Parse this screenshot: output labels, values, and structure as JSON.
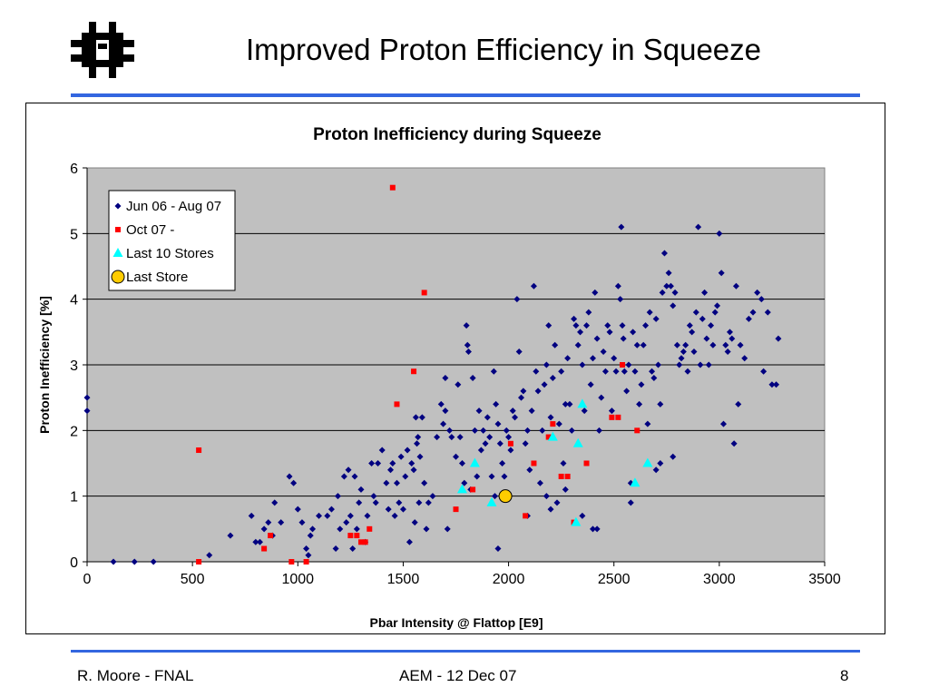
{
  "slide": {
    "title": "Improved Proton Efficiency in Squeeze",
    "logo_icon": "fermilab-logo-icon",
    "accent_color": "#3366e0"
  },
  "footer": {
    "left": "R. Moore - FNAL",
    "center": "AEM - 12 Dec 07",
    "right": "8"
  },
  "chart_data": {
    "type": "scatter",
    "title": "Proton Inefficiency during Squeeze",
    "xlabel": "Pbar Intensity @ Flattop  [E9]",
    "ylabel": "Proton Inefficiency  [%]",
    "xlim": [
      0,
      3500
    ],
    "ylim": [
      0,
      6
    ],
    "xticks": [
      0,
      500,
      1000,
      1500,
      2000,
      2500,
      3000,
      3500
    ],
    "yticks": [
      0,
      1,
      2,
      3,
      4,
      5,
      6
    ],
    "grid": "horizontal",
    "plot_background": "#c0c0c0",
    "legend_placement": "top-left",
    "series": [
      {
        "name": "Jun 06 - Aug 07",
        "marker": "diamond",
        "color": "#000080",
        "points": [
          [
            0,
            2.5
          ],
          [
            0,
            2.3
          ],
          [
            125,
            0.0
          ],
          [
            225,
            0.0
          ],
          [
            315,
            0.0
          ],
          [
            580,
            0.1
          ],
          [
            680,
            0.4
          ],
          [
            780,
            0.7
          ],
          [
            800,
            0.3
          ],
          [
            820,
            0.3
          ],
          [
            840,
            0.5
          ],
          [
            860,
            0.6
          ],
          [
            880,
            0.4
          ],
          [
            890,
            0.9
          ],
          [
            920,
            0.6
          ],
          [
            960,
            1.3
          ],
          [
            980,
            1.2
          ],
          [
            1000,
            0.8
          ],
          [
            1020,
            0.6
          ],
          [
            1040,
            0.2
          ],
          [
            1050,
            0.1
          ],
          [
            1060,
            0.4
          ],
          [
            1070,
            0.5
          ],
          [
            1100,
            0.7
          ],
          [
            1140,
            0.7
          ],
          [
            1160,
            0.8
          ],
          [
            1180,
            0.2
          ],
          [
            1190,
            1.0
          ],
          [
            1200,
            0.5
          ],
          [
            1220,
            1.3
          ],
          [
            1230,
            0.6
          ],
          [
            1240,
            1.4
          ],
          [
            1250,
            0.7
          ],
          [
            1260,
            0.2
          ],
          [
            1270,
            1.3
          ],
          [
            1280,
            0.5
          ],
          [
            1290,
            0.9
          ],
          [
            1300,
            1.1
          ],
          [
            1320,
            0.3
          ],
          [
            1330,
            0.7
          ],
          [
            1350,
            1.5
          ],
          [
            1360,
            1.0
          ],
          [
            1370,
            0.9
          ],
          [
            1380,
            1.5
          ],
          [
            1400,
            1.7
          ],
          [
            1420,
            1.2
          ],
          [
            1430,
            0.8
          ],
          [
            1440,
            1.4
          ],
          [
            1450,
            1.5
          ],
          [
            1460,
            0.7
          ],
          [
            1470,
            1.2
          ],
          [
            1480,
            0.9
          ],
          [
            1490,
            1.6
          ],
          [
            1500,
            0.8
          ],
          [
            1510,
            1.3
          ],
          [
            1520,
            1.7
          ],
          [
            1530,
            0.3
          ],
          [
            1540,
            1.5
          ],
          [
            1550,
            1.4
          ],
          [
            1555,
            0.6
          ],
          [
            1560,
            2.2
          ],
          [
            1565,
            1.8
          ],
          [
            1570,
            1.9
          ],
          [
            1575,
            0.9
          ],
          [
            1580,
            1.6
          ],
          [
            1590,
            2.2
          ],
          [
            1600,
            1.2
          ],
          [
            1610,
            0.5
          ],
          [
            1620,
            0.9
          ],
          [
            1640,
            1.0
          ],
          [
            1660,
            1.9
          ],
          [
            1680,
            2.4
          ],
          [
            1690,
            2.1
          ],
          [
            1700,
            2.8
          ],
          [
            1710,
            0.5
          ],
          [
            1720,
            2.0
          ],
          [
            1730,
            1.9
          ],
          [
            1750,
            1.6
          ],
          [
            1760,
            2.7
          ],
          [
            1770,
            1.9
          ],
          [
            1780,
            1.5
          ],
          [
            1790,
            1.2
          ],
          [
            1800,
            3.6
          ],
          [
            1805,
            3.3
          ],
          [
            1810,
            3.2
          ],
          [
            1820,
            1.1
          ],
          [
            1830,
            2.8
          ],
          [
            1840,
            2.0
          ],
          [
            1850,
            1.3
          ],
          [
            1860,
            2.3
          ],
          [
            1870,
            1.7
          ],
          [
            1880,
            2.0
          ],
          [
            1890,
            1.8
          ],
          [
            1900,
            2.2
          ],
          [
            1910,
            1.9
          ],
          [
            1920,
            1.3
          ],
          [
            1930,
            2.9
          ],
          [
            1935,
            1.0
          ],
          [
            1940,
            2.4
          ],
          [
            1950,
            2.1
          ],
          [
            1960,
            1.8
          ],
          [
            1970,
            1.5
          ],
          [
            1980,
            1.3
          ],
          [
            1990,
            2.0
          ],
          [
            2000,
            1.9
          ],
          [
            2010,
            1.7
          ],
          [
            2020,
            2.3
          ],
          [
            2030,
            2.2
          ],
          [
            2040,
            4.0
          ],
          [
            2050,
            3.2
          ],
          [
            2060,
            2.5
          ],
          [
            2070,
            2.6
          ],
          [
            2080,
            1.8
          ],
          [
            2090,
            2.0
          ],
          [
            2100,
            1.4
          ],
          [
            2110,
            2.3
          ],
          [
            2120,
            4.2
          ],
          [
            2130,
            2.9
          ],
          [
            2140,
            2.6
          ],
          [
            2150,
            1.2
          ],
          [
            2160,
            2.0
          ],
          [
            2170,
            2.7
          ],
          [
            2180,
            3.0
          ],
          [
            2190,
            3.6
          ],
          [
            2200,
            2.2
          ],
          [
            2210,
            2.8
          ],
          [
            2220,
            3.3
          ],
          [
            2230,
            0.9
          ],
          [
            2240,
            2.1
          ],
          [
            2250,
            2.9
          ],
          [
            2260,
            1.5
          ],
          [
            2270,
            2.4
          ],
          [
            2280,
            3.1
          ],
          [
            2290,
            2.4
          ],
          [
            2300,
            2.0
          ],
          [
            2310,
            3.7
          ],
          [
            2320,
            3.6
          ],
          [
            2330,
            3.3
          ],
          [
            2340,
            3.5
          ],
          [
            2350,
            3.0
          ],
          [
            2360,
            2.3
          ],
          [
            2370,
            3.6
          ],
          [
            2380,
            3.8
          ],
          [
            2390,
            2.7
          ],
          [
            2400,
            3.1
          ],
          [
            2410,
            4.1
          ],
          [
            2420,
            3.4
          ],
          [
            2430,
            2.0
          ],
          [
            2440,
            2.5
          ],
          [
            2450,
            3.2
          ],
          [
            2460,
            2.9
          ],
          [
            2470,
            3.6
          ],
          [
            2480,
            3.5
          ],
          [
            2490,
            2.3
          ],
          [
            2500,
            3.1
          ],
          [
            2510,
            2.9
          ],
          [
            2520,
            4.2
          ],
          [
            2530,
            4.0
          ],
          [
            2535,
            5.1
          ],
          [
            2540,
            3.6
          ],
          [
            2545,
            3.4
          ],
          [
            2550,
            2.9
          ],
          [
            2560,
            2.6
          ],
          [
            2570,
            3.0
          ],
          [
            2580,
            1.2
          ],
          [
            2590,
            3.5
          ],
          [
            2600,
            2.9
          ],
          [
            2610,
            3.3
          ],
          [
            2620,
            2.4
          ],
          [
            2630,
            2.7
          ],
          [
            2640,
            3.3
          ],
          [
            2650,
            3.6
          ],
          [
            2660,
            2.1
          ],
          [
            2670,
            3.8
          ],
          [
            2680,
            2.9
          ],
          [
            2690,
            2.8
          ],
          [
            2700,
            3.7
          ],
          [
            2710,
            3.0
          ],
          [
            2720,
            2.4
          ],
          [
            2730,
            4.1
          ],
          [
            2740,
            4.7
          ],
          [
            2750,
            4.2
          ],
          [
            2760,
            4.4
          ],
          [
            2770,
            4.2
          ],
          [
            2780,
            3.9
          ],
          [
            2790,
            4.1
          ],
          [
            2800,
            3.3
          ],
          [
            2810,
            3.0
          ],
          [
            2820,
            3.1
          ],
          [
            2830,
            3.2
          ],
          [
            2840,
            3.3
          ],
          [
            2850,
            2.9
          ],
          [
            2860,
            3.6
          ],
          [
            2870,
            3.5
          ],
          [
            2880,
            3.2
          ],
          [
            2890,
            3.8
          ],
          [
            2900,
            5.1
          ],
          [
            2910,
            3.0
          ],
          [
            2920,
            3.7
          ],
          [
            2930,
            4.1
          ],
          [
            2940,
            3.4
          ],
          [
            2950,
            3.0
          ],
          [
            2960,
            3.6
          ],
          [
            2970,
            3.3
          ],
          [
            2980,
            3.8
          ],
          [
            2990,
            3.9
          ],
          [
            3000,
            5.0
          ],
          [
            3010,
            4.4
          ],
          [
            3020,
            2.1
          ],
          [
            3030,
            3.3
          ],
          [
            3040,
            3.2
          ],
          [
            3050,
            3.5
          ],
          [
            3060,
            3.4
          ],
          [
            3070,
            1.8
          ],
          [
            3080,
            4.2
          ],
          [
            3090,
            2.4
          ],
          [
            3100,
            3.3
          ],
          [
            3120,
            3.1
          ],
          [
            3140,
            3.7
          ],
          [
            3160,
            3.8
          ],
          [
            3180,
            4.1
          ],
          [
            3200,
            4.0
          ],
          [
            3210,
            2.9
          ],
          [
            3230,
            3.8
          ],
          [
            3250,
            2.7
          ],
          [
            3270,
            2.7
          ],
          [
            3280,
            3.4
          ],
          [
            2700,
            1.4
          ],
          [
            2720,
            1.5
          ],
          [
            2780,
            1.6
          ],
          [
            2580,
            0.9
          ],
          [
            2400,
            0.5
          ],
          [
            2420,
            0.5
          ],
          [
            2350,
            0.7
          ],
          [
            2270,
            1.1
          ],
          [
            2200,
            0.8
          ],
          [
            2180,
            1.0
          ],
          [
            1950,
            0.2
          ],
          [
            2090,
            0.7
          ],
          [
            1700,
            2.3
          ]
        ]
      },
      {
        "name": "Oct 07 -",
        "marker": "square",
        "color": "#ff0000",
        "points": [
          [
            530,
            1.7
          ],
          [
            530,
            0.0
          ],
          [
            840,
            0.2
          ],
          [
            870,
            0.4
          ],
          [
            970,
            0.0
          ],
          [
            1040,
            0.0
          ],
          [
            1250,
            0.4
          ],
          [
            1280,
            0.4
          ],
          [
            1300,
            0.3
          ],
          [
            1320,
            0.3
          ],
          [
            1340,
            0.5
          ],
          [
            1450,
            5.7
          ],
          [
            1470,
            2.4
          ],
          [
            1550,
            2.9
          ],
          [
            1600,
            4.1
          ],
          [
            1750,
            0.8
          ],
          [
            1830,
            1.1
          ],
          [
            2010,
            1.8
          ],
          [
            2080,
            0.7
          ],
          [
            2120,
            1.5
          ],
          [
            2190,
            1.9
          ],
          [
            2210,
            2.1
          ],
          [
            2250,
            1.3
          ],
          [
            2280,
            1.3
          ],
          [
            2310,
            0.6
          ],
          [
            2370,
            1.5
          ],
          [
            2490,
            2.2
          ],
          [
            2520,
            2.2
          ],
          [
            2540,
            3.0
          ],
          [
            2610,
            2.0
          ]
        ]
      },
      {
        "name": "Last 10 Stores",
        "marker": "triangle",
        "color": "#00ffff",
        "points": [
          [
            1780,
            1.1
          ],
          [
            1840,
            1.5
          ],
          [
            1920,
            0.9
          ],
          [
            2210,
            1.9
          ],
          [
            2320,
            0.6
          ],
          [
            2330,
            1.8
          ],
          [
            2350,
            2.4
          ],
          [
            2600,
            1.2
          ],
          [
            2660,
            1.5
          ]
        ]
      },
      {
        "name": "Last Store",
        "marker": "circle",
        "color": "#ffcc00",
        "points": [
          [
            1985,
            1.0
          ]
        ]
      }
    ]
  }
}
